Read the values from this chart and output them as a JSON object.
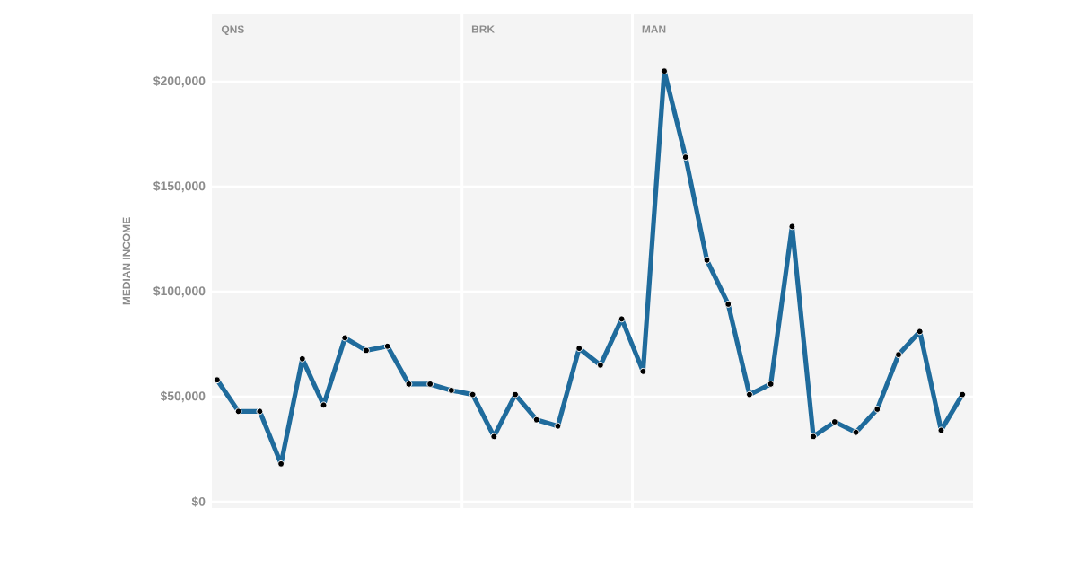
{
  "chart_data": {
    "type": "line",
    "ylabel": "MEDIAN INCOME",
    "categories": [
      null,
      null,
      null,
      null,
      null,
      null,
      null,
      null,
      null,
      null,
      null,
      null,
      null,
      null,
      null,
      null,
      null,
      null,
      null,
      null,
      null,
      null,
      null,
      null,
      null,
      null,
      null,
      null,
      null,
      null,
      null,
      null,
      null,
      null,
      null,
      null
    ],
    "series": [
      {
        "color": "#1f6b9c",
        "values": [
          58000,
          43000,
          43000,
          18000,
          68000,
          46000,
          78000,
          72000,
          74000,
          56000,
          56000,
          53000,
          51000,
          31000,
          51000,
          39000,
          36000,
          73000,
          65000,
          87000,
          62000,
          205000,
          164000,
          115000,
          94000,
          51000,
          56000,
          131000,
          31000,
          38000,
          33000,
          44000,
          70000,
          81000,
          34000,
          51000
        ]
      }
    ],
    "ylim": [
      -3000,
      232000
    ],
    "yticks": [
      {
        "value": 0,
        "label": "$0"
      },
      {
        "value": 50000,
        "label": "$50,000"
      },
      {
        "value": 100000,
        "label": "$100,000"
      },
      {
        "value": 150000,
        "label": "$150,000"
      },
      {
        "value": 200000,
        "label": "$200,000"
      }
    ],
    "annotations": [
      "QNS",
      "BRK",
      "MAN"
    ],
    "grid": "y",
    "marker": "circle",
    "line_style": "solid",
    "tick_labels": "y"
  }
}
